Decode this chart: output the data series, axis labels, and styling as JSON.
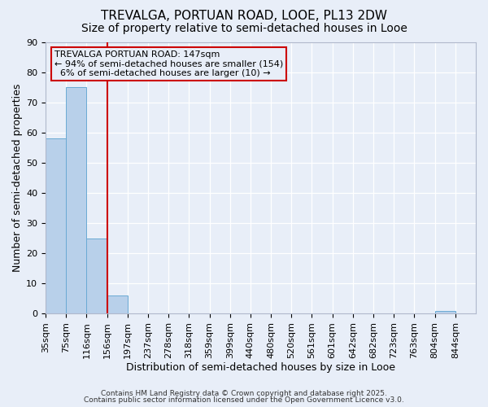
{
  "title1": "TREVALGA, PORTUAN ROAD, LOOE, PL13 2DW",
  "title2": "Size of property relative to semi-detached houses in Looe",
  "xlabel": "Distribution of semi-detached houses by size in Looe",
  "ylabel": "Number of semi-detached properties",
  "categories": [
    "35sqm",
    "75sqm",
    "116sqm",
    "156sqm",
    "197sqm",
    "237sqm",
    "278sqm",
    "318sqm",
    "359sqm",
    "399sqm",
    "440sqm",
    "480sqm",
    "520sqm",
    "561sqm",
    "601sqm",
    "642sqm",
    "682sqm",
    "723sqm",
    "763sqm",
    "804sqm",
    "844sqm"
  ],
  "values": [
    58,
    75,
    25,
    6,
    0,
    0,
    0,
    0,
    0,
    0,
    0,
    0,
    0,
    0,
    0,
    0,
    0,
    0,
    0,
    1,
    0
  ],
  "bar_color": "#b8d0ea",
  "bar_edge_color": "#6aaad4",
  "vline_color": "#cc0000",
  "vline_position": 3,
  "ylim": [
    0,
    90
  ],
  "yticks": [
    0,
    10,
    20,
    30,
    40,
    50,
    60,
    70,
    80,
    90
  ],
  "annotation_text": "TREVALGA PORTUAN ROAD: 147sqm\n← 94% of semi-detached houses are smaller (154)\n  6% of semi-detached houses are larger (10) →",
  "annotation_box_color": "#cc0000",
  "footer1": "Contains HM Land Registry data © Crown copyright and database right 2025.",
  "footer2": "Contains public sector information licensed under the Open Government Licence v3.0.",
  "bg_color": "#e8eef8",
  "grid_color": "#ffffff",
  "title_fontsize": 11,
  "subtitle_fontsize": 10,
  "tick_fontsize": 8,
  "label_fontsize": 9
}
